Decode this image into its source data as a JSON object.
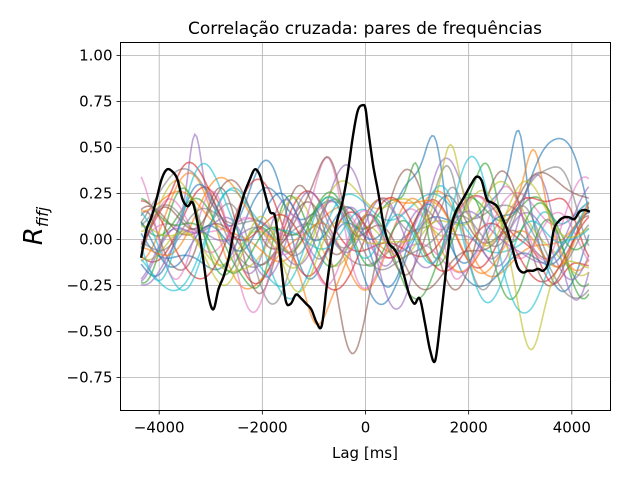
{
  "chart_data": {
    "type": "line",
    "title": "Correlação cruzada: pares de frequências",
    "xlabel": "Lag [ms]",
    "ylabel": "R_{f_i f_j}",
    "ylabel_main": "R",
    "ylabel_sub": "fifj",
    "xlim": [
      -4750,
      4750
    ],
    "ylim": [
      -0.93,
      1.07
    ],
    "xticks": [
      -4000,
      -2000,
      0,
      2000,
      4000
    ],
    "xtick_labels": [
      "−4000",
      "−2000",
      "0",
      "2000",
      "4000"
    ],
    "yticks": [
      -0.75,
      -0.5,
      -0.25,
      0.0,
      0.25,
      0.5,
      0.75,
      1.0
    ],
    "ytick_labels": [
      "−0.75",
      "−0.50",
      "−0.25",
      "0.00",
      "0.25",
      "0.50",
      "0.75",
      "1.00"
    ],
    "grid": true,
    "legend": "none",
    "background_series_count": 30,
    "background_palette": [
      "#1f77b4",
      "#ff7f0e",
      "#2ca02c",
      "#d62728",
      "#9467bd",
      "#8c564b",
      "#e377c2",
      "#7f7f7f",
      "#bcbd22",
      "#17becf"
    ],
    "series": [
      {
        "color": "#000000",
        "x": [
          -4350,
          -4250,
          -4150,
          -4050,
          -3950,
          -3850,
          -3750,
          -3650,
          -3550,
          -3450,
          -3350,
          -3250,
          -3150,
          -3050,
          -2950,
          -2850,
          -2750,
          -2650,
          -2550,
          -2450,
          -2350,
          -2250,
          -2150,
          -2050,
          -1950,
          -1850,
          -1750,
          -1650,
          -1550,
          -1450,
          -1350,
          -1250,
          -1150,
          -1050,
          -950,
          -850,
          -750,
          -650,
          -550,
          -450,
          -350,
          -250,
          -150,
          -50,
          0,
          50,
          150,
          250,
          350,
          450,
          550,
          650,
          750,
          850,
          950,
          1050,
          1150,
          1250,
          1350,
          1450,
          1550,
          1650,
          1750,
          1850,
          1950,
          2050,
          2150,
          2250,
          2350,
          2450,
          2550,
          2650,
          2750,
          2850,
          2950,
          3050,
          3150,
          3250,
          3350,
          3450,
          3550,
          3650,
          3750,
          3850,
          3950,
          4050,
          4150,
          4250,
          4350
        ],
        "y": [
          -0.1,
          0.05,
          0.12,
          0.22,
          0.33,
          0.38,
          0.37,
          0.33,
          0.22,
          0.18,
          0.2,
          0.08,
          -0.1,
          -0.3,
          -0.38,
          -0.27,
          -0.2,
          -0.1,
          0.05,
          0.15,
          0.25,
          0.32,
          0.38,
          0.35,
          0.25,
          0.15,
          0.12,
          -0.1,
          -0.33,
          -0.35,
          -0.3,
          -0.32,
          -0.35,
          -0.38,
          -0.45,
          -0.47,
          -0.25,
          -0.05,
          0.1,
          0.2,
          0.35,
          0.55,
          0.7,
          0.73,
          0.71,
          0.6,
          0.4,
          0.25,
          0.08,
          -0.02,
          -0.05,
          -0.1,
          -0.2,
          -0.3,
          -0.35,
          -0.32,
          -0.45,
          -0.6,
          -0.66,
          -0.45,
          -0.2,
          0.05,
          0.15,
          0.2,
          0.25,
          0.3,
          0.34,
          0.32,
          0.22,
          0.2,
          0.18,
          0.12,
          0.05,
          -0.05,
          -0.15,
          -0.18,
          -0.17,
          -0.17,
          -0.16,
          -0.17,
          -0.12,
          0.05,
          0.1,
          0.12,
          0.12,
          0.11,
          0.15,
          0.16,
          0.15
        ]
      }
    ]
  }
}
